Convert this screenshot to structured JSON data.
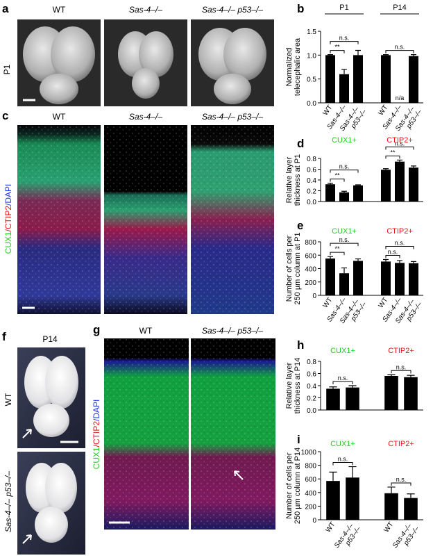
{
  "panel_labels": [
    "a",
    "b",
    "c",
    "d",
    "e",
    "f",
    "g",
    "h",
    "i"
  ],
  "panel_a": {
    "columns": [
      "WT",
      "Sas-4–/–",
      "Sas-4–/– p53–/–"
    ],
    "row_label": "P1"
  },
  "panel_c": {
    "columns": [
      "WT",
      "Sas-4–/–",
      "Sas-4–/– p53–/–"
    ],
    "stain": [
      "CUX1",
      "/CTIP2",
      "/DAPI"
    ]
  },
  "panel_f": {
    "title": "P14",
    "rows": [
      "WT",
      "Sas-4–/– p53–/–"
    ]
  },
  "panel_g": {
    "columns": [
      "WT",
      "Sas-4–/– p53–/–"
    ],
    "stain": [
      "CUX1",
      "/CTIP2",
      "/DAPI"
    ]
  },
  "chart_data": [
    {
      "type": "bar",
      "color": "#000000",
      "ylabel": [
        "Normalized",
        "telecephalic area"
      ],
      "group_labels": [
        "P1",
        "P14"
      ],
      "group_header_lines": true,
      "categories": [
        "WT",
        "Sas-4–/–",
        "Sas-4–/– p53–/–",
        "WT",
        "Sas-4–/–",
        "Sas-4–/– p53–/–"
      ],
      "values": [
        1.0,
        0.6,
        1.0,
        1.0,
        null,
        0.98
      ],
      "errors": [
        0.01,
        0.1,
        0.1,
        0.01,
        null,
        0.03
      ],
      "value_labels": [
        null,
        null,
        null,
        null,
        "n/a",
        null
      ],
      "comparisons": [
        {
          "pair": [
            0,
            1
          ],
          "label": "**"
        },
        {
          "pair": [
            0,
            2
          ],
          "label": "n.s."
        },
        {
          "pair": [
            3,
            5
          ],
          "label": "n.s."
        }
      ],
      "ylim": [
        0,
        1.5
      ],
      "yticks": [
        {
          "value": 0,
          "label": "0.0"
        },
        {
          "value": 0.5,
          "label": "0.5"
        },
        {
          "value": 1.0,
          "label": "1.0"
        },
        {
          "value": 1.5,
          "label": "1.5"
        }
      ]
    },
    {
      "type": "bar",
      "color": "#000000",
      "ylabel": [
        "Relative layer",
        "thickness at P1"
      ],
      "group_labels": [
        "CUX1+",
        "CTIP2+"
      ],
      "group_colors": [
        "#22cc22",
        "#ee1111"
      ],
      "categories": [
        null,
        null,
        null,
        null,
        null,
        null
      ],
      "values": [
        0.32,
        0.17,
        0.3,
        0.59,
        0.74,
        0.63
      ],
      "errors": [
        0.02,
        0.02,
        0.01,
        0.02,
        0.03,
        0.03
      ],
      "comparisons": [
        {
          "pair": [
            0,
            1
          ],
          "label": "**"
        },
        {
          "pair": [
            0,
            2
          ],
          "label": "n.s."
        },
        {
          "pair": [
            3,
            4
          ],
          "label": "**"
        },
        {
          "pair": [
            3,
            5
          ],
          "label": "n.s."
        }
      ],
      "ylim": [
        0,
        0.8
      ],
      "yticks": [
        {
          "value": 0,
          "label": "0.0"
        },
        {
          "value": 0.2,
          "label": "0.2"
        },
        {
          "value": 0.4,
          "label": "0.4"
        },
        {
          "value": 0.6,
          "label": "0.6"
        },
        {
          "value": 0.8,
          "label": "0.8"
        }
      ]
    },
    {
      "type": "bar",
      "color": "#000000",
      "ylabel": [
        "Number of cells per",
        "250 µm column at P1"
      ],
      "group_labels": [
        "CUX1+",
        "CTIP2+"
      ],
      "group_colors": [
        "#22cc22",
        "#ee1111"
      ],
      "categories": [
        "WT",
        "Sas-4–/–",
        "Sas-4–/– p53–/–",
        "WT",
        "Sas-4–/–",
        "Sas-4–/– p53–/–"
      ],
      "values": [
        550,
        330,
        515,
        505,
        485,
        480
      ],
      "errors": [
        30,
        80,
        30,
        30,
        35,
        25
      ],
      "comparisons": [
        {
          "pair": [
            0,
            1
          ],
          "label": "**"
        },
        {
          "pair": [
            0,
            2
          ],
          "label": "n.s."
        },
        {
          "pair": [
            3,
            4
          ],
          "label": "n.s."
        },
        {
          "pair": [
            3,
            5
          ],
          "label": "n.s."
        }
      ],
      "ylim": [
        0,
        800
      ],
      "yticks": [
        0,
        200,
        400,
        600,
        800
      ]
    },
    {
      "type": "bar",
      "color": "#000000",
      "ylabel": [
        "Relative layer",
        "thickness at P14"
      ],
      "group_labels": [
        "CUX1+",
        "CTIP2+"
      ],
      "group_colors": [
        "#22cc22",
        "#ee1111"
      ],
      "categories": [
        null,
        null,
        null,
        null
      ],
      "values": [
        0.35,
        0.37,
        0.56,
        0.54
      ],
      "errors": [
        0.03,
        0.03,
        0.02,
        0.03
      ],
      "comparisons": [
        {
          "pair": [
            0,
            1
          ],
          "label": "n.s."
        },
        {
          "pair": [
            2,
            3
          ],
          "label": "n.s."
        }
      ],
      "ylim": [
        0,
        0.8
      ],
      "yticks": [
        {
          "value": 0,
          "label": "0.0"
        },
        {
          "value": 0.2,
          "label": "0.2"
        },
        {
          "value": 0.4,
          "label": "0.4"
        },
        {
          "value": 0.6,
          "label": "0.6"
        },
        {
          "value": 0.8,
          "label": "0.8"
        }
      ]
    },
    {
      "type": "bar",
      "color": "#000000",
      "ylabel": [
        "Number of cells per",
        "250 µm column at P14"
      ],
      "group_labels": [
        "CUX1+",
        "CTIP2+"
      ],
      "group_colors": [
        "#22cc22",
        "#ee1111"
      ],
      "categories": [
        "WT",
        "Sas-4–/– p53–/–",
        "WT",
        "Sas-4–/– p53–/–"
      ],
      "values": [
        570,
        620,
        390,
        320
      ],
      "errors": [
        130,
        160,
        90,
        60
      ],
      "comparisons": [
        {
          "pair": [
            0,
            1
          ],
          "label": "n.s."
        },
        {
          "pair": [
            2,
            3
          ],
          "label": "n.s."
        }
      ],
      "ylim": [
        0,
        1000
      ],
      "yticks": [
        0,
        200,
        400,
        600,
        800,
        1000
      ]
    }
  ]
}
